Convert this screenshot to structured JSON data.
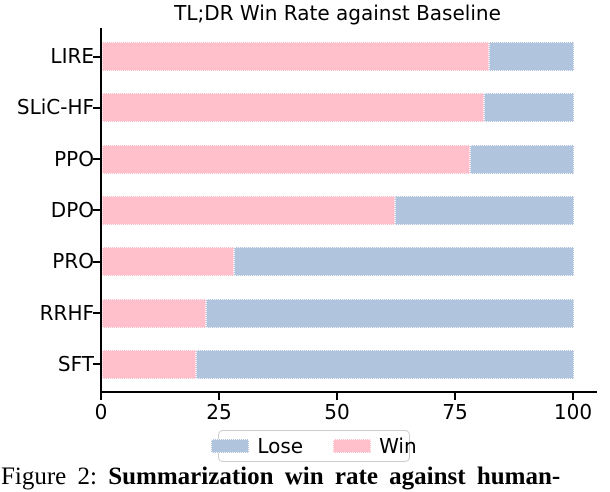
{
  "chart_data": {
    "type": "bar",
    "orientation": "horizontal",
    "stacked": true,
    "title": "TL;DR Win Rate against Baseline",
    "categories": [
      "LIRE",
      "SLiC-HF",
      "PPO",
      "DPO",
      "PRO",
      "RRHF",
      "SFT"
    ],
    "series": [
      {
        "name": "Win",
        "color": "#ffc0cb",
        "values": [
          82,
          81,
          78,
          62,
          28,
          22,
          20
        ]
      },
      {
        "name": "Lose",
        "color": "#b0c4de",
        "values": [
          18,
          19,
          22,
          38,
          72,
          78,
          80
        ]
      }
    ],
    "xlim": [
      0,
      100
    ],
    "x_ticks": [
      "0",
      "25",
      "50",
      "75",
      "100"
    ],
    "grid": "off",
    "legend": {
      "position": "below-axis",
      "entries": [
        {
          "label": "Lose",
          "color": "#b0c4de"
        },
        {
          "label": "Win",
          "color": "#ffc0cb"
        }
      ]
    }
  },
  "caption": {
    "prefix": "Figure 2: ",
    "bold_text": "Summarization win rate against human-"
  }
}
